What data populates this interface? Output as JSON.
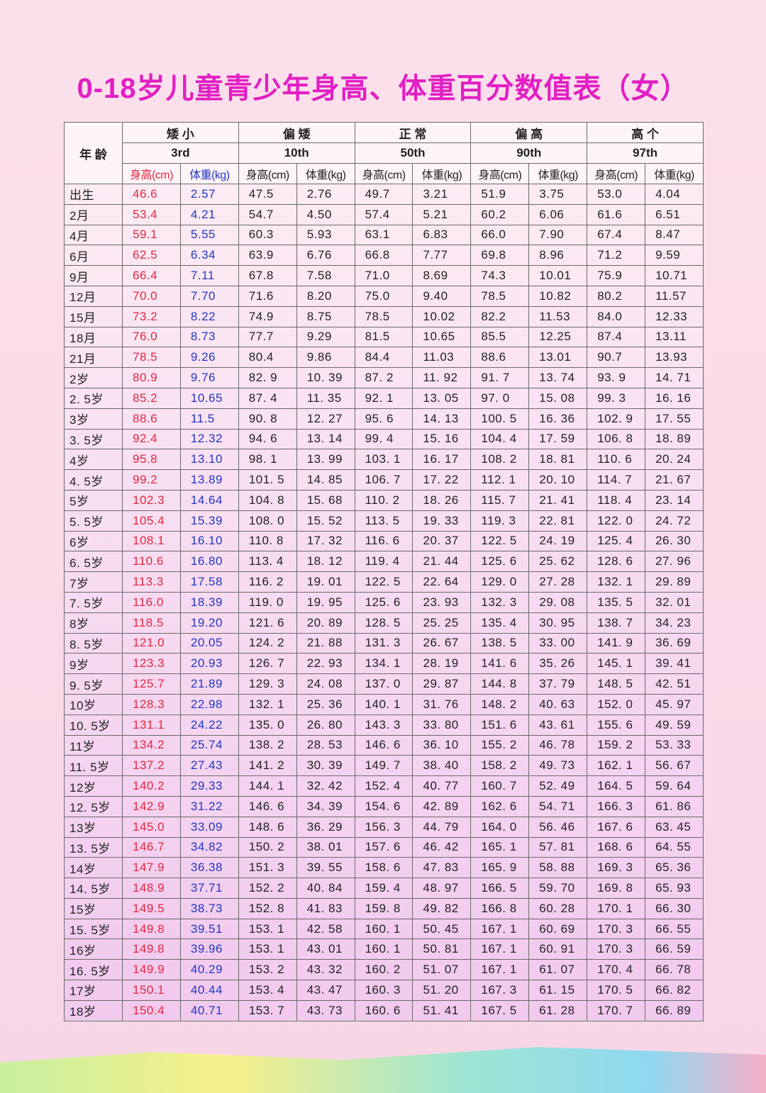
{
  "header": {
    "title": "0-18岁儿童青少年身高、体重百分数值表（女）"
  },
  "table": {
    "age_header": "年 龄",
    "groups": [
      {
        "name": "矮 小",
        "percentile": "3rd"
      },
      {
        "name": "偏 矮",
        "percentile": "10th"
      },
      {
        "name": "正 常",
        "percentile": "50th"
      },
      {
        "name": "偏 高",
        "percentile": "90th"
      },
      {
        "name": "高 个",
        "percentile": "97th"
      }
    ],
    "subheaders": [
      "身高(cm)",
      "体重(kg)",
      "身高(cm)",
      "体重(kg)",
      "身高(cm)",
      "体重(kg)",
      "身高(cm)",
      "体重(kg)",
      "身高(cm)",
      "体重(kg)"
    ],
    "rows": [
      [
        "出生",
        "46.6",
        "2.57",
        "47.5",
        "2.76",
        "49.7",
        "3.21",
        "51.9",
        "3.75",
        "53.0",
        "4.04"
      ],
      [
        "2月",
        "53.4",
        "4.21",
        "54.7",
        "4.50",
        "57.4",
        "5.21",
        "60.2",
        "6.06",
        "61.6",
        "6.51"
      ],
      [
        "4月",
        "59.1",
        "5.55",
        "60.3",
        "5.93",
        "63.1",
        "6.83",
        "66.0",
        "7.90",
        "67.4",
        "8.47"
      ],
      [
        "6月",
        "62.5",
        "6.34",
        "63.9",
        "6.76",
        "66.8",
        "7.77",
        "69.8",
        "8.96",
        "71.2",
        "9.59"
      ],
      [
        "9月",
        "66.4",
        "7.11",
        "67.8",
        "7.58",
        "71.0",
        "8.69",
        "74.3",
        "10.01",
        "75.9",
        "10.71"
      ],
      [
        "12月",
        "70.0",
        "7.70",
        "71.6",
        "8.20",
        "75.0",
        "9.40",
        "78.5",
        "10.82",
        "80.2",
        "11.57"
      ],
      [
        "15月",
        "73.2",
        "8.22",
        "74.9",
        "8.75",
        "78.5",
        "10.02",
        "82.2",
        "11.53",
        "84.0",
        "12.33"
      ],
      [
        "18月",
        "76.0",
        "8.73",
        "77.7",
        "9.29",
        "81.5",
        "10.65",
        "85.5",
        "12.25",
        "87.4",
        "13.11"
      ],
      [
        "21月",
        "78.5",
        "9.26",
        "80.4",
        "9.86",
        "84.4",
        "11.03",
        "88.6",
        "13.01",
        "90.7",
        "13.93"
      ],
      [
        "2岁",
        "80.9",
        "9.76",
        "82. 9",
        "10. 39",
        "87. 2",
        "11. 92",
        "91. 7",
        "13. 74",
        "93. 9",
        "14. 71"
      ],
      [
        "2. 5岁",
        "85.2",
        "10.65",
        "87. 4",
        "11. 35",
        "92. 1",
        "13. 05",
        "97. 0",
        "15. 08",
        "99. 3",
        "16. 16"
      ],
      [
        "3岁",
        "88.6",
        "11.5",
        "90. 8",
        "12. 27",
        "95. 6",
        "14. 13",
        "100. 5",
        "16. 36",
        "102. 9",
        "17. 55"
      ],
      [
        "3. 5岁",
        "92.4",
        "12.32",
        "94. 6",
        "13. 14",
        "99. 4",
        "15. 16",
        "104. 4",
        "17. 59",
        "106. 8",
        "18. 89"
      ],
      [
        "4岁",
        "95.8",
        "13.10",
        "98. 1",
        "13. 99",
        "103. 1",
        "16. 17",
        "108. 2",
        "18. 81",
        "110. 6",
        "20. 24"
      ],
      [
        "4. 5岁",
        "99.2",
        "13.89",
        "101. 5",
        "14. 85",
        "106. 7",
        "17. 22",
        "112. 1",
        "20. 10",
        "114. 7",
        "21. 67"
      ],
      [
        "5岁",
        "102.3",
        "14.64",
        "104. 8",
        "15. 68",
        "110. 2",
        "18. 26",
        "115. 7",
        "21. 41",
        "118. 4",
        "23. 14"
      ],
      [
        "5. 5岁",
        "105.4",
        "15.39",
        "108. 0",
        "15. 52",
        "113. 5",
        "19. 33",
        "119. 3",
        "22. 81",
        "122. 0",
        "24. 72"
      ],
      [
        "6岁",
        "108.1",
        "16.10",
        "110. 8",
        "17. 32",
        "116. 6",
        "20. 37",
        "122. 5",
        "24. 19",
        "125. 4",
        "26. 30"
      ],
      [
        "6. 5岁",
        "110.6",
        "16.80",
        "113. 4",
        "18. 12",
        "119. 4",
        "21. 44",
        "125. 6",
        "25. 62",
        "128. 6",
        "27. 96"
      ],
      [
        "7岁",
        "113.3",
        "17.58",
        "116. 2",
        "19. 01",
        "122. 5",
        "22. 64",
        "129. 0",
        "27. 28",
        "132. 1",
        "29. 89"
      ],
      [
        "7. 5岁",
        "116.0",
        "18.39",
        "119. 0",
        "19. 95",
        "125. 6",
        "23. 93",
        "132. 3",
        "29. 08",
        "135. 5",
        "32. 01"
      ],
      [
        "8岁",
        "118.5",
        "19.20",
        "121. 6",
        "20. 89",
        "128. 5",
        "25. 25",
        "135. 4",
        "30. 95",
        "138. 7",
        "34. 23"
      ],
      [
        "8. 5岁",
        "121.0",
        "20.05",
        "124. 2",
        "21. 88",
        "131. 3",
        "26. 67",
        "138. 5",
        "33. 00",
        "141. 9",
        "36. 69"
      ],
      [
        "9岁",
        "123.3",
        "20.93",
        "126. 7",
        "22. 93",
        "134. 1",
        "28. 19",
        "141. 6",
        "35. 26",
        "145. 1",
        "39. 41"
      ],
      [
        "9. 5岁",
        "125.7",
        "21.89",
        "129. 3",
        "24. 08",
        "137. 0",
        "29. 87",
        "144. 8",
        "37. 79",
        "148. 5",
        "42. 51"
      ],
      [
        "10岁",
        "128.3",
        "22.98",
        "132. 1",
        "25. 36",
        "140. 1",
        "31. 76",
        "148. 2",
        "40. 63",
        "152. 0",
        "45. 97"
      ],
      [
        "10. 5岁",
        "131.1",
        "24.22",
        "135. 0",
        "26. 80",
        "143. 3",
        "33. 80",
        "151. 6",
        "43. 61",
        "155. 6",
        "49. 59"
      ],
      [
        "11岁",
        "134.2",
        "25.74",
        "138. 2",
        "28. 53",
        "146. 6",
        "36. 10",
        "155. 2",
        "46. 78",
        "159. 2",
        "53. 33"
      ],
      [
        "11. 5岁",
        "137.2",
        "27.43",
        "141. 2",
        "30. 39",
        "149. 7",
        "38. 40",
        "158. 2",
        "49. 73",
        "162. 1",
        "56. 67"
      ],
      [
        "12岁",
        "140.2",
        "29.33",
        "144. 1",
        "32. 42",
        "152. 4",
        "40. 77",
        "160. 7",
        "52. 49",
        "164. 5",
        "59. 64"
      ],
      [
        "12. 5岁",
        "142.9",
        "31.22",
        "146. 6",
        "34. 39",
        "154. 6",
        "42. 89",
        "162. 6",
        "54. 71",
        "166. 3",
        "61. 86"
      ],
      [
        "13岁",
        "145.0",
        "33.09",
        "148. 6",
        "36. 29",
        "156. 3",
        "44. 79",
        "164. 0",
        "56. 46",
        "167. 6",
        "63. 45"
      ],
      [
        "13. 5岁",
        "146.7",
        "34.82",
        "150. 2",
        "38. 01",
        "157. 6",
        "46. 42",
        "165. 1",
        "57. 81",
        "168. 6",
        "64. 55"
      ],
      [
        "14岁",
        "147.9",
        "36.38",
        "151. 3",
        "39. 55",
        "158. 6",
        "47. 83",
        "165. 9",
        "58. 88",
        "169. 3",
        "65. 36"
      ],
      [
        "14. 5岁",
        "148.9",
        "37.71",
        "152. 2",
        "40. 84",
        "159. 4",
        "48. 97",
        "166. 5",
        "59. 70",
        "169. 8",
        "65. 93"
      ],
      [
        "15岁",
        "149.5",
        "38.73",
        "152. 8",
        "41. 83",
        "159. 8",
        "49. 82",
        "166. 8",
        "60. 28",
        "170. 1",
        "66. 30"
      ],
      [
        "15. 5岁",
        "149.8",
        "39.51",
        "153. 1",
        "42. 58",
        "160. 1",
        "50. 45",
        "167. 1",
        "60. 69",
        "170. 3",
        "66. 55"
      ],
      [
        "16岁",
        "149.8",
        "39.96",
        "153. 1",
        "43. 01",
        "160. 1",
        "50. 81",
        "167. 1",
        "60. 91",
        "170. 3",
        "66. 59"
      ],
      [
        "16. 5岁",
        "149.9",
        "40.29",
        "153. 2",
        "43. 32",
        "160. 2",
        "51. 07",
        "167. 1",
        "61. 07",
        "170. 4",
        "66. 78"
      ],
      [
        "17岁",
        "150.1",
        "40.44",
        "153. 4",
        "43. 47",
        "160. 3",
        "51. 20",
        "167. 3",
        "61. 15",
        "170. 5",
        "66. 82"
      ],
      [
        "18岁",
        "150.4",
        "40.71",
        "153. 7",
        "43. 73",
        "160. 6",
        "51. 41",
        "167. 5",
        "61. 28",
        "170. 7",
        "66. 89"
      ]
    ]
  }
}
